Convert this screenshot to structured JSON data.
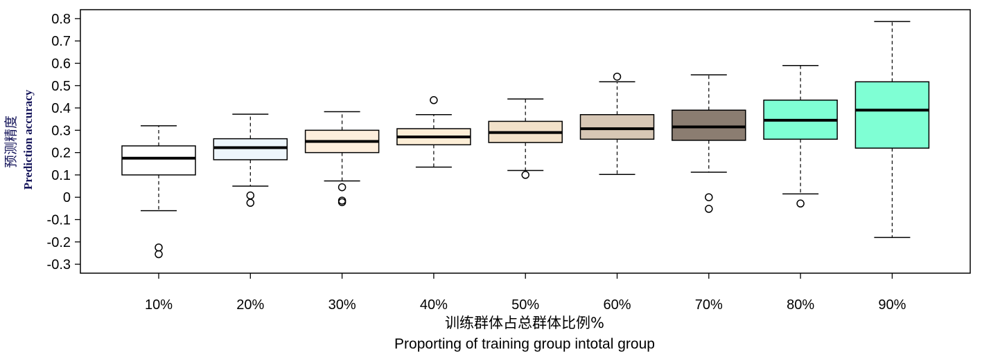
{
  "chart_data": {
    "type": "box",
    "xlabel": "训练群体占总群体比例%",
    "xlabel_en": "Proporting of training group intotal group",
    "ylabel": "预测精度",
    "ylabel_en": "Prediction accuracy",
    "ylim": [
      -0.34,
      0.84
    ],
    "y_ticks": [
      {
        "value": 0.8,
        "label": "0.8"
      },
      {
        "value": 0.7,
        "label": "0.7"
      },
      {
        "value": 0.6,
        "label": "0.6"
      },
      {
        "value": 0.5,
        "label": "0.5"
      },
      {
        "value": 0.4,
        "label": "0.4"
      },
      {
        "value": 0.3,
        "label": "0.3"
      },
      {
        "value": 0.2,
        "label": "0.2"
      },
      {
        "value": 0.1,
        "label": "0.1"
      },
      {
        "value": 0,
        "label": "0"
      },
      {
        "value": -0.1,
        "label": "-0.1"
      },
      {
        "value": -0.2,
        "label": "-0.2"
      },
      {
        "value": -0.3,
        "label": "-0.3"
      }
    ],
    "grid": false,
    "categories": [
      "10%",
      "20%",
      "30%",
      "40%",
      "50%",
      "60%",
      "70%",
      "80%",
      "90%"
    ],
    "boxes": [
      {
        "category": "10%",
        "whisker_low": -0.06,
        "q1": 0.1,
        "median": 0.175,
        "q3": 0.23,
        "whisker_high": 0.32,
        "outliers": [
          -0.225,
          -0.255
        ],
        "color": "#ffffff"
      },
      {
        "category": "20%",
        "whisker_low": 0.05,
        "q1": 0.168,
        "median": 0.222,
        "q3": 0.262,
        "whisker_high": 0.372,
        "outliers": [
          0.008,
          -0.025
        ],
        "color": "#eef6fc"
      },
      {
        "category": "30%",
        "whisker_low": 0.073,
        "q1": 0.2,
        "median": 0.25,
        "q3": 0.3,
        "whisker_high": 0.383,
        "outliers": [
          0.045,
          -0.015,
          -0.022
        ],
        "color": "#fdeedd"
      },
      {
        "category": "40%",
        "whisker_low": 0.135,
        "q1": 0.235,
        "median": 0.27,
        "q3": 0.307,
        "whisker_high": 0.37,
        "outliers": [
          0.435
        ],
        "color": "#fdeed6"
      },
      {
        "category": "50%",
        "whisker_low": 0.12,
        "q1": 0.245,
        "median": 0.29,
        "q3": 0.34,
        "whisker_high": 0.44,
        "outliers": [
          0.1
        ],
        "color": "#f2e1c9"
      },
      {
        "category": "60%",
        "whisker_low": 0.102,
        "q1": 0.26,
        "median": 0.307,
        "q3": 0.37,
        "whisker_high": 0.517,
        "outliers": [
          0.54
        ],
        "color": "#d7c7b5"
      },
      {
        "category": "70%",
        "whisker_low": 0.112,
        "q1": 0.255,
        "median": 0.315,
        "q3": 0.39,
        "whisker_high": 0.548,
        "outliers": [
          0.0,
          -0.052
        ],
        "color": "#8b7d71"
      },
      {
        "category": "80%",
        "whisker_low": 0.015,
        "q1": 0.26,
        "median": 0.345,
        "q3": 0.435,
        "whisker_high": 0.59,
        "outliers": [
          -0.028
        ],
        "color": "#7fffd4"
      },
      {
        "category": "90%",
        "whisker_low": -0.18,
        "q1": 0.22,
        "median": 0.39,
        "q3": 0.517,
        "whisker_high": 0.787,
        "outliers": [],
        "color": "#7fffd4"
      }
    ]
  }
}
